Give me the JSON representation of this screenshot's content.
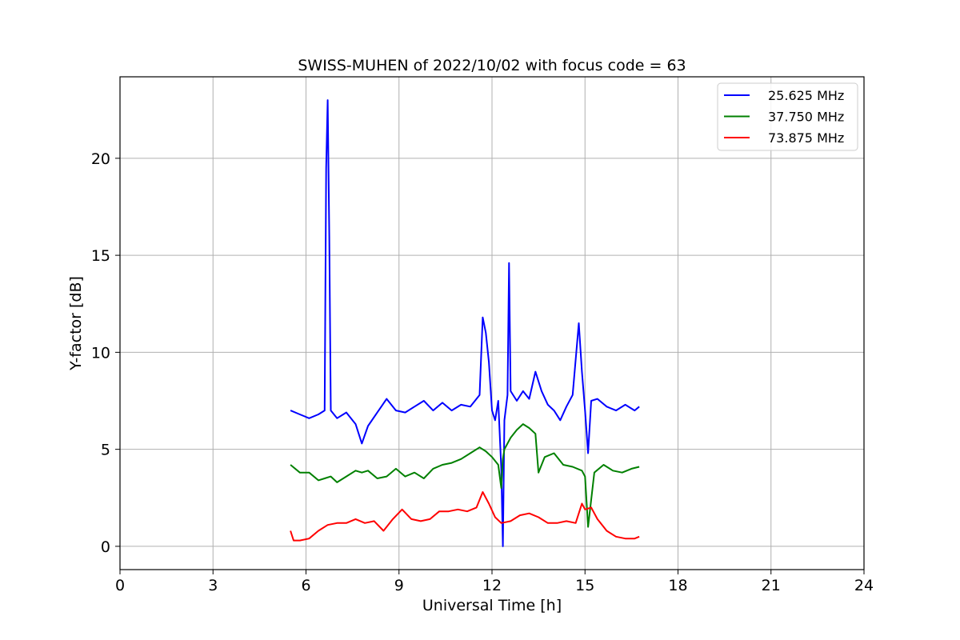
{
  "chart_data": {
    "type": "line",
    "title": "SWISS-MUHEN of 2022/10/02 with focus code = 63",
    "xlabel": "Universal Time [h]",
    "ylabel": "Y-factor [dB]",
    "xlim": [
      0,
      24
    ],
    "ylim": [
      -1.2,
      24.2
    ],
    "xticks": [
      0,
      3,
      6,
      9,
      12,
      15,
      18,
      21,
      24
    ],
    "yticks": [
      0,
      5,
      10,
      15,
      20
    ],
    "grid": true,
    "legend_position": "top-right",
    "series": [
      {
        "name": "25.625 MHz",
        "color": "#0000ff",
        "x": [
          5.5,
          5.8,
          6.1,
          6.4,
          6.6,
          6.65,
          6.7,
          6.75,
          6.8,
          7.0,
          7.3,
          7.6,
          7.8,
          8.0,
          8.3,
          8.6,
          8.9,
          9.2,
          9.5,
          9.8,
          10.1,
          10.4,
          10.7,
          11.0,
          11.3,
          11.6,
          11.7,
          11.8,
          11.9,
          12.0,
          12.1,
          12.2,
          12.3,
          12.35,
          12.4,
          12.5,
          12.55,
          12.6,
          12.8,
          13.0,
          13.2,
          13.4,
          13.6,
          13.8,
          14.0,
          14.2,
          14.4,
          14.6,
          14.8,
          14.9,
          15.0,
          15.1,
          15.2,
          15.4,
          15.7,
          16.0,
          16.3,
          16.6,
          16.75
        ],
        "values": [
          7.0,
          6.8,
          6.6,
          6.8,
          7.0,
          19.5,
          23.0,
          16.0,
          7.0,
          6.6,
          6.9,
          6.3,
          5.3,
          6.2,
          6.9,
          7.6,
          7.0,
          6.9,
          7.2,
          7.5,
          7.0,
          7.4,
          7.0,
          7.3,
          7.2,
          7.8,
          11.8,
          11.0,
          9.5,
          7.0,
          6.5,
          7.5,
          4.0,
          0.0,
          6.5,
          7.8,
          14.6,
          8.0,
          7.5,
          8.0,
          7.6,
          9.0,
          8.0,
          7.3,
          7.0,
          6.5,
          7.2,
          7.8,
          11.5,
          9.0,
          7.0,
          4.8,
          7.5,
          7.6,
          7.2,
          7.0,
          7.3,
          7.0,
          7.2
        ]
      },
      {
        "name": "37.750 MHz",
        "color": "#008000",
        "x": [
          5.5,
          5.8,
          6.1,
          6.4,
          6.6,
          6.8,
          7.0,
          7.3,
          7.6,
          7.8,
          8.0,
          8.3,
          8.6,
          8.9,
          9.2,
          9.5,
          9.8,
          10.1,
          10.4,
          10.7,
          11.0,
          11.3,
          11.6,
          11.8,
          12.0,
          12.2,
          12.3,
          12.35,
          12.4,
          12.6,
          12.8,
          13.0,
          13.2,
          13.4,
          13.5,
          13.7,
          14.0,
          14.3,
          14.6,
          14.9,
          15.0,
          15.1,
          15.3,
          15.6,
          15.9,
          16.2,
          16.5,
          16.75
        ],
        "values": [
          4.2,
          3.8,
          3.8,
          3.4,
          3.5,
          3.6,
          3.3,
          3.6,
          3.9,
          3.8,
          3.9,
          3.5,
          3.6,
          4.0,
          3.6,
          3.8,
          3.5,
          4.0,
          4.2,
          4.3,
          4.5,
          4.8,
          5.1,
          4.9,
          4.6,
          4.2,
          3.0,
          4.5,
          5.0,
          5.6,
          6.0,
          6.3,
          6.1,
          5.8,
          3.8,
          4.6,
          4.8,
          4.2,
          4.1,
          3.9,
          3.6,
          1.0,
          3.8,
          4.2,
          3.9,
          3.8,
          4.0,
          4.1
        ]
      },
      {
        "name": "73.875 MHz",
        "color": "#ff0000",
        "x": [
          5.5,
          5.6,
          5.8,
          6.1,
          6.4,
          6.7,
          7.0,
          7.3,
          7.6,
          7.9,
          8.2,
          8.5,
          8.8,
          9.1,
          9.4,
          9.7,
          10.0,
          10.3,
          10.6,
          10.9,
          11.2,
          11.5,
          11.7,
          11.9,
          12.1,
          12.3,
          12.6,
          12.9,
          13.2,
          13.5,
          13.8,
          14.1,
          14.4,
          14.7,
          14.9,
          15.0,
          15.2,
          15.4,
          15.7,
          16.0,
          16.3,
          16.6,
          16.75
        ],
        "values": [
          0.8,
          0.3,
          0.3,
          0.4,
          0.8,
          1.1,
          1.2,
          1.2,
          1.4,
          1.2,
          1.3,
          0.8,
          1.4,
          1.9,
          1.4,
          1.3,
          1.4,
          1.8,
          1.8,
          1.9,
          1.8,
          2.0,
          2.8,
          2.2,
          1.5,
          1.2,
          1.3,
          1.6,
          1.7,
          1.5,
          1.2,
          1.2,
          1.3,
          1.2,
          2.2,
          1.9,
          2.0,
          1.4,
          0.8,
          0.5,
          0.4,
          0.4,
          0.5
        ]
      }
    ]
  }
}
